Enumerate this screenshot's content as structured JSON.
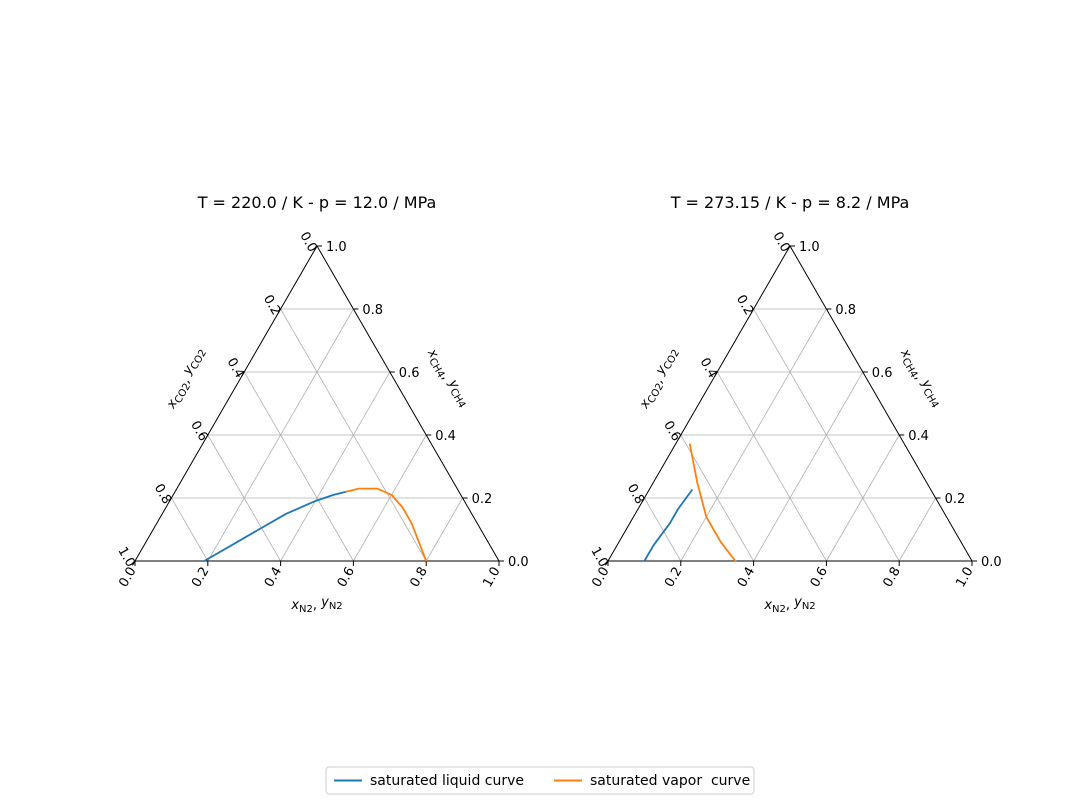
{
  "figure": {
    "legend": {
      "placement": "bottom-center",
      "entries": [
        {
          "label": "saturated liquid curve",
          "color": "#1f77b4"
        },
        {
          "label": "saturated vapor  curve",
          "color": "#ff7f0e"
        }
      ]
    }
  },
  "chart_data": [
    {
      "type": "ternary",
      "title": "T = 220.0 / K - p = 12.0 / MPa",
      "axes": {
        "bottom": {
          "label_main": "x",
          "label_sub": "N2",
          "label_main2": "y",
          "label_sub2": "N2",
          "ticks": [
            "0.0",
            "0.2",
            "0.4",
            "0.6",
            "0.8",
            "1.0"
          ]
        },
        "right": {
          "label_main": "x",
          "label_sub": "CH4",
          "label_main2": "y",
          "label_sub2": "CH4",
          "ticks": [
            "0.0",
            "0.2",
            "0.4",
            "0.6",
            "0.8",
            "1.0"
          ]
        },
        "left": {
          "label_main": "x",
          "label_sub": "CO2",
          "label_main2": "y",
          "label_sub2": "CO2",
          "ticks": [
            "0.0",
            "0.2",
            "0.4",
            "0.6",
            "0.8",
            "1.0"
          ]
        },
        "range": [
          0,
          1
        ],
        "grid": true
      },
      "series": [
        {
          "name": "saturated liquid curve",
          "color": "#1f77b4",
          "points": [
            {
              "n2": 0.19,
              "ch4": 0.0
            },
            {
              "n2": 0.24,
              "ch4": 0.05
            },
            {
              "n2": 0.29,
              "ch4": 0.1
            },
            {
              "n2": 0.34,
              "ch4": 0.15
            },
            {
              "n2": 0.4,
              "ch4": 0.19
            },
            {
              "n2": 0.44,
              "ch4": 0.21
            },
            {
              "n2": 0.47,
              "ch4": 0.22
            }
          ]
        },
        {
          "name": "saturated vapor  curve",
          "color": "#ff7f0e",
          "points": [
            {
              "n2": 0.47,
              "ch4": 0.22
            },
            {
              "n2": 0.5,
              "ch4": 0.23
            },
            {
              "n2": 0.55,
              "ch4": 0.23
            },
            {
              "n2": 0.6,
              "ch4": 0.21
            },
            {
              "n2": 0.65,
              "ch4": 0.17
            },
            {
              "n2": 0.7,
              "ch4": 0.12
            },
            {
              "n2": 0.75,
              "ch4": 0.06
            },
            {
              "n2": 0.8,
              "ch4": 0.0
            }
          ]
        }
      ]
    },
    {
      "type": "ternary",
      "title": "T = 273.15 / K - p = 8.2 / MPa",
      "axes": {
        "bottom": {
          "label_main": "x",
          "label_sub": "N2",
          "label_main2": "y",
          "label_sub2": "N2",
          "ticks": [
            "0.0",
            "0.2",
            "0.4",
            "0.6",
            "0.8",
            "1.0"
          ]
        },
        "right": {
          "label_main": "x",
          "label_sub": "CH4",
          "label_main2": "y",
          "label_sub2": "CH4",
          "ticks": [
            "0.0",
            "0.2",
            "0.4",
            "0.6",
            "0.8",
            "1.0"
          ]
        },
        "left": {
          "label_main": "x",
          "label_sub": "CO2",
          "label_main2": "y",
          "label_sub2": "CO2",
          "ticks": [
            "0.0",
            "0.2",
            "0.4",
            "0.6",
            "0.8",
            "1.0"
          ]
        },
        "range": [
          0,
          1
        ],
        "grid": true
      },
      "series": [
        {
          "name": "saturated liquid curve",
          "color": "#1f77b4",
          "points": [
            {
              "n2": 0.1,
              "ch4": 0.0
            },
            {
              "n2": 0.1,
              "ch4": 0.05
            },
            {
              "n2": 0.11,
              "ch4": 0.12
            },
            {
              "n2": 0.11,
              "ch4": 0.165
            },
            {
              "n2": 0.118,
              "ch4": 0.225
            }
          ]
        },
        {
          "name": "saturated vapor  curve",
          "color": "#ff7f0e",
          "points": [
            {
              "n2": 0.04,
              "ch4": 0.37
            },
            {
              "n2": 0.12,
              "ch4": 0.25
            },
            {
              "n2": 0.2,
              "ch4": 0.14
            },
            {
              "n2": 0.28,
              "ch4": 0.06
            },
            {
              "n2": 0.35,
              "ch4": 0.0
            }
          ]
        }
      ]
    }
  ]
}
